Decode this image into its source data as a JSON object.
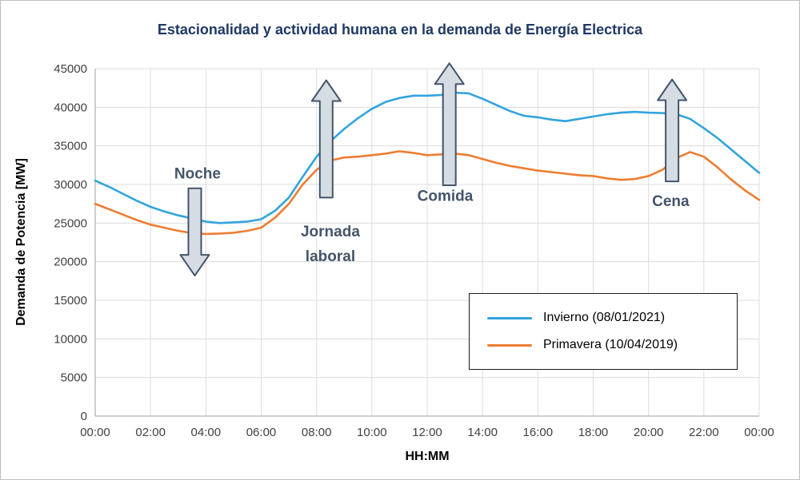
{
  "title": "Estacionalidad y actividad humana en la demanda de Energía Electrica",
  "chart_data": {
    "type": "line",
    "title": "Estacionalidad y actividad humana en la demanda de Energía Electrica",
    "xlabel": "HH:MM",
    "ylabel": "Demanda de Potencia [MW]",
    "xlim": [
      0,
      24
    ],
    "ylim": [
      0,
      45000
    ],
    "grid": true,
    "legend_position": "lower right",
    "x_step_hours": 0.5,
    "x_tick_labels": [
      "00:00",
      "02:00",
      "04:00",
      "06:00",
      "08:00",
      "10:00",
      "12:00",
      "14:00",
      "16:00",
      "18:00",
      "20:00",
      "22:00",
      "00:00"
    ],
    "y_ticks": [
      0,
      5000,
      10000,
      15000,
      20000,
      25000,
      30000,
      35000,
      40000,
      45000
    ],
    "series": [
      {
        "name": "Invierno (08/01/2021)",
        "color": "#31A4DC",
        "values": [
          30500,
          29700,
          28800,
          27900,
          27100,
          26500,
          26000,
          25600,
          25200,
          25000,
          25100,
          25200,
          25500,
          26600,
          28300,
          31000,
          33600,
          35600,
          37200,
          38600,
          39800,
          40700,
          41200,
          41500,
          41500,
          41600,
          41900,
          41800,
          41100,
          40300,
          39500,
          38900,
          38700,
          38400,
          38200,
          38500,
          38800,
          39100,
          39300,
          39400,
          39300,
          39250,
          39100,
          38500,
          37300,
          36000,
          34500,
          33000,
          31500
        ]
      },
      {
        "name": "Primavera (10/04/2019)",
        "color": "#ED7D31",
        "values": [
          27500,
          26800,
          26100,
          25400,
          24800,
          24400,
          24000,
          23700,
          23600,
          23650,
          23750,
          24000,
          24400,
          25700,
          27500,
          30000,
          31900,
          33100,
          33500,
          33600,
          33800,
          34000,
          34300,
          34100,
          33800,
          33900,
          34000,
          33800,
          33300,
          32800,
          32400,
          32100,
          31800,
          31600,
          31400,
          31200,
          31100,
          30800,
          30600,
          30700,
          31100,
          31900,
          33400,
          34200,
          33600,
          32200,
          30600,
          29200,
          28000
        ]
      }
    ],
    "annotations": [
      {
        "id": "noche",
        "lines": [
          "Noche"
        ],
        "label_t": 3.7,
        "label_v": 30800,
        "line_gap": 31,
        "arrow": {
          "dir": "down",
          "t": 3.6,
          "v_from": 29500,
          "v_to": 18200
        }
      },
      {
        "id": "jornada-laboral",
        "lines": [
          "Jornada",
          "laboral"
        ],
        "label_t": 8.5,
        "label_v": 23300,
        "line_gap": 31,
        "arrow": {
          "dir": "up",
          "t": 8.35,
          "v_from": 28300,
          "v_to": 43500
        }
      },
      {
        "id": "comida",
        "lines": [
          "Comida"
        ],
        "label_t": 12.65,
        "label_v": 27900,
        "line_gap": 31,
        "arrow": {
          "dir": "up",
          "t": 12.8,
          "v_from": 29900,
          "v_to": 45700
        }
      },
      {
        "id": "cena",
        "lines": [
          "Cena"
        ],
        "label_t": 20.8,
        "label_v": 27200,
        "line_gap": 31,
        "arrow": {
          "dir": "up",
          "t": 20.85,
          "v_from": 30400,
          "v_to": 43600
        }
      }
    ],
    "colors": {
      "grid": "#dcdcdc",
      "axis": "#9e9e9e",
      "arrow_fill": "#d6dce4",
      "arrow_stroke": "#44546A",
      "annotation_text": "#44546A",
      "title_text": "#1F3864"
    }
  }
}
